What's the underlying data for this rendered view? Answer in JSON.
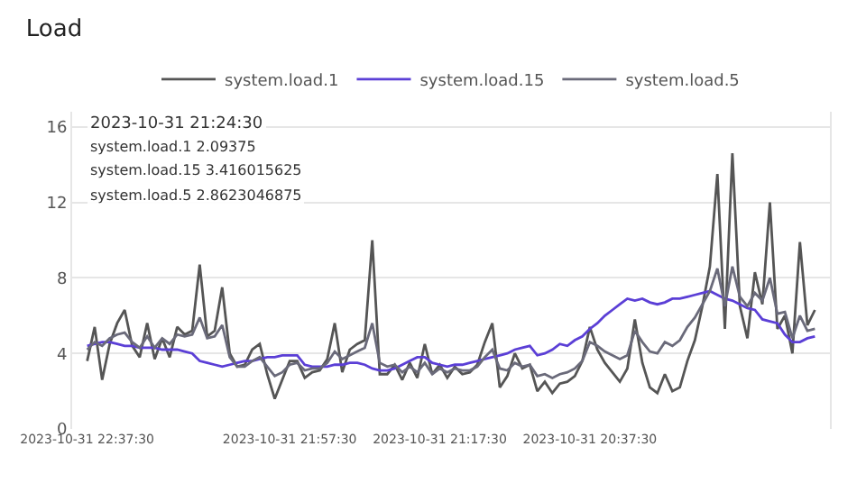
{
  "chart_data": {
    "type": "line",
    "title": "Load",
    "categories": [
      "2023-10-31 22:37:30",
      null,
      null,
      null,
      null,
      null,
      null,
      null,
      null,
      null,
      null,
      null,
      null,
      null,
      null,
      null,
      null,
      null,
      null,
      null,
      null,
      null,
      null,
      null,
      null,
      null,
      null,
      "2023-10-31 21:57:30",
      null,
      null,
      null,
      null,
      null,
      null,
      null,
      null,
      null,
      null,
      null,
      null,
      null,
      null,
      null,
      null,
      null,
      null,
      null,
      "2023-10-31 21:17:30",
      null,
      null,
      null,
      null,
      null,
      null,
      null,
      null,
      null,
      null,
      null,
      null,
      null,
      null,
      null,
      null,
      null,
      null,
      null,
      "2023-10-31 20:37:30",
      null,
      null,
      null,
      null,
      null,
      null,
      null,
      null,
      null,
      null,
      null,
      null,
      null,
      null,
      null,
      null,
      null,
      null,
      null,
      null,
      null,
      null,
      null,
      null,
      null,
      null,
      null,
      null,
      null,
      null
    ],
    "series": [
      {
        "name": "system.load.1",
        "color": "#555555",
        "values": [
          3.6,
          5.4,
          2.6,
          4.5,
          5.6,
          6.3,
          4.4,
          3.8,
          5.6,
          3.7,
          4.8,
          3.8,
          5.4,
          5.0,
          5.2,
          8.7,
          4.9,
          5.2,
          7.5,
          4.0,
          3.3,
          3.4,
          4.2,
          4.5,
          2.9,
          1.6,
          2.6,
          3.6,
          3.6,
          2.7,
          3.0,
          3.1,
          3.7,
          5.6,
          3.0,
          4.2,
          4.5,
          4.7,
          10.0,
          2.9,
          2.9,
          3.4,
          2.6,
          3.5,
          2.7,
          4.5,
          2.9,
          3.4,
          2.7,
          3.3,
          2.9,
          3.0,
          3.4,
          4.6,
          5.6,
          2.2,
          2.8,
          4.0,
          3.2,
          3.4,
          2.0,
          2.5,
          1.9,
          2.4,
          2.5,
          2.8,
          3.6,
          5.4,
          4.2,
          3.5,
          3.0,
          2.5,
          3.2,
          5.8,
          3.5,
          2.2,
          1.9,
          2.9,
          2.0,
          2.2,
          3.6,
          4.7,
          6.5,
          8.6,
          13.5,
          5.3,
          14.6,
          6.5,
          4.8,
          8.3,
          6.6,
          12.0,
          5.3,
          6.0,
          4.0,
          9.9,
          5.5,
          6.3
        ]
      },
      {
        "name": "system.load.15",
        "color": "#5b3fd6",
        "values": [
          4.4,
          4.5,
          4.6,
          4.6,
          4.5,
          4.4,
          4.4,
          4.3,
          4.3,
          4.3,
          4.2,
          4.2,
          4.2,
          4.1,
          4.0,
          3.6,
          3.5,
          3.4,
          3.3,
          3.4,
          3.5,
          3.6,
          3.6,
          3.7,
          3.8,
          3.8,
          3.9,
          3.9,
          3.9,
          3.4,
          3.3,
          3.3,
          3.3,
          3.4,
          3.4,
          3.5,
          3.5,
          3.4,
          3.2,
          3.1,
          3.1,
          3.2,
          3.4,
          3.6,
          3.8,
          3.8,
          3.5,
          3.4,
          3.3,
          3.4,
          3.4,
          3.5,
          3.6,
          3.7,
          3.8,
          3.9,
          4.0,
          4.2,
          4.3,
          4.4,
          3.9,
          4.0,
          4.2,
          4.5,
          4.4,
          4.7,
          4.9,
          5.3,
          5.6,
          6.0,
          6.3,
          6.6,
          6.9,
          6.8,
          6.9,
          6.7,
          6.6,
          6.7,
          6.9,
          6.9,
          7.0,
          7.1,
          7.2,
          7.3,
          7.1,
          6.9,
          6.8,
          6.6,
          6.4,
          6.3,
          5.8,
          5.7,
          5.6,
          5.0,
          4.6,
          4.6,
          4.8,
          4.9
        ]
      },
      {
        "name": "system.load.5",
        "color": "#6a6a7a",
        "values": [
          4.2,
          4.6,
          4.4,
          4.8,
          5.0,
          5.1,
          4.6,
          4.3,
          4.9,
          4.3,
          4.8,
          4.5,
          5.0,
          4.9,
          5.0,
          5.9,
          4.8,
          4.9,
          5.5,
          3.8,
          3.3,
          3.3,
          3.6,
          3.8,
          3.3,
          2.8,
          3.0,
          3.4,
          3.5,
          3.1,
          3.2,
          3.2,
          3.5,
          4.1,
          3.7,
          3.9,
          4.1,
          4.3,
          5.6,
          3.5,
          3.3,
          3.4,
          3.0,
          3.3,
          3.0,
          3.5,
          2.9,
          3.2,
          3.0,
          3.2,
          3.1,
          3.1,
          3.3,
          3.8,
          4.2,
          3.2,
          3.1,
          3.5,
          3.3,
          3.4,
          2.8,
          2.9,
          2.7,
          2.9,
          3.0,
          3.2,
          3.6,
          4.6,
          4.4,
          4.1,
          3.9,
          3.7,
          3.9,
          5.2,
          4.6,
          4.1,
          4.0,
          4.6,
          4.4,
          4.7,
          5.4,
          5.9,
          6.6,
          7.3,
          8.5,
          6.5,
          8.6,
          7.0,
          6.5,
          7.2,
          6.8,
          8.0,
          6.1,
          6.2,
          4.8,
          6.0,
          5.2,
          5.3
        ]
      }
    ],
    "ylim": [
      0,
      16.8
    ],
    "yticks": [
      0,
      4,
      8,
      12,
      16
    ],
    "grid": "y",
    "legend": "top",
    "marker": "none",
    "line_style": "solid",
    "annotations": [
      "2023-10-31 21:24:30",
      "system.load.1 2.09375",
      "system.load.15 3.416015625",
      "system.load.5 2.8623046875"
    ]
  }
}
